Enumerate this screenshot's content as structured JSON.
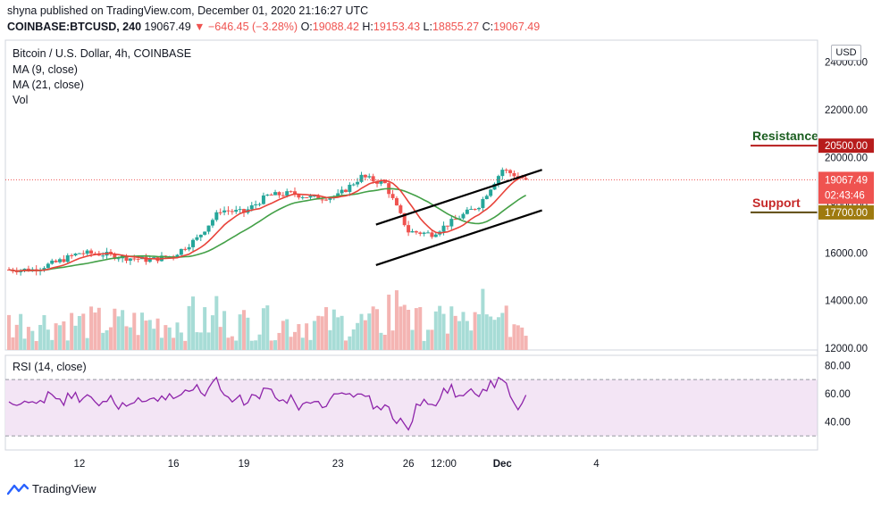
{
  "header": {
    "published": "shyna published on TradingView.com, December 01, 2020 21:16:27 UTC",
    "symbol": "COINBASE:BTCUSD, 240",
    "last": "19067.49",
    "change": "−646.45 (−3.28%)",
    "o_label": "O:",
    "o_value": "19088.42",
    "h_label": "H:",
    "h_value": "19153.43",
    "l_label": "L:",
    "l_value": "18855.27",
    "c_label": "C:",
    "c_value": "19067.49"
  },
  "legend": {
    "title": "Bitcoin / U.S. Dollar, 4h, COINBASE",
    "ma9": "MA (9, close)",
    "ma21": "MA (21, close)",
    "vol": "Vol",
    "rsi": "RSI (14, close)"
  },
  "currency": "USD",
  "footer": {
    "brand": "TradingView"
  },
  "colors": {
    "up": "#26a69a",
    "down": "#ef5350",
    "ma9": "#e8433a",
    "ma21": "#43a047",
    "rsi_line": "#8e24aa",
    "rsi_band": "#f3e5f5",
    "price_tag": "#ef5350",
    "level_tag": "#b71c1c",
    "support_tag": "#9e7a0f"
  },
  "chart_data": {
    "type": "candlestick",
    "instrument": "Bitcoin / U.S. Dollar, 4h, COINBASE",
    "price_axis": {
      "ticks": [
        12000,
        14000,
        16000,
        18000,
        20000,
        22000,
        24000
      ],
      "tick_labels": [
        "12000.00",
        "14000.00",
        "16000.00",
        "18000.00",
        "20000.00",
        "22000.00",
        "24000.00"
      ]
    },
    "x_axis": {
      "tick_labels": [
        "12",
        "16",
        "19",
        "23",
        "26",
        "12:00",
        "Dec",
        "4"
      ]
    },
    "current_price": {
      "value": 19067.49,
      "label": "19067.49",
      "countdown": "02:43:46"
    },
    "levels": [
      {
        "name": "Resistance",
        "value": 20500,
        "label": "20500.00"
      },
      {
        "name": "Support",
        "value": 17700,
        "label": "17700.00"
      }
    ],
    "channel": {
      "upper": [
        [
          "Nov 25",
          17300
        ],
        [
          "Dec 1",
          19300
        ]
      ],
      "lower": [
        [
          "Nov 25",
          15600
        ],
        [
          "Dec 1",
          17600
        ]
      ]
    },
    "close_path": [
      [
        "Nov 9",
        15300
      ],
      [
        "Nov 10",
        15300
      ],
      [
        "Nov 11",
        15600
      ],
      [
        "Nov 12",
        16000
      ],
      [
        "Nov 13",
        15950
      ],
      [
        "Nov 14",
        15800
      ],
      [
        "Nov 15",
        15700
      ],
      [
        "Nov 16",
        15900
      ],
      [
        "Nov 17",
        16600
      ],
      [
        "Nov 18",
        17800
      ],
      [
        "Nov 19",
        17700
      ],
      [
        "Nov 20",
        18400
      ],
      [
        "Nov 21",
        18500
      ],
      [
        "Nov 22",
        18300
      ],
      [
        "Nov 23",
        18400
      ],
      [
        "Nov 24",
        19200
      ],
      [
        "Nov 25",
        18900
      ],
      [
        "Nov 26",
        16900
      ],
      [
        "Nov 27",
        16800
      ],
      [
        "Nov 28",
        17400
      ],
      [
        "Nov 29",
        18000
      ],
      [
        "Nov 30",
        19500
      ],
      [
        "Dec 1",
        19067
      ]
    ],
    "rsi": {
      "name": "RSI (14, close)",
      "band": [
        30,
        70
      ],
      "ticks": [
        40,
        60,
        80
      ],
      "tick_labels": [
        "40.00",
        "60.00",
        "80.00"
      ],
      "last": 59
    },
    "volume_axis": "none"
  }
}
